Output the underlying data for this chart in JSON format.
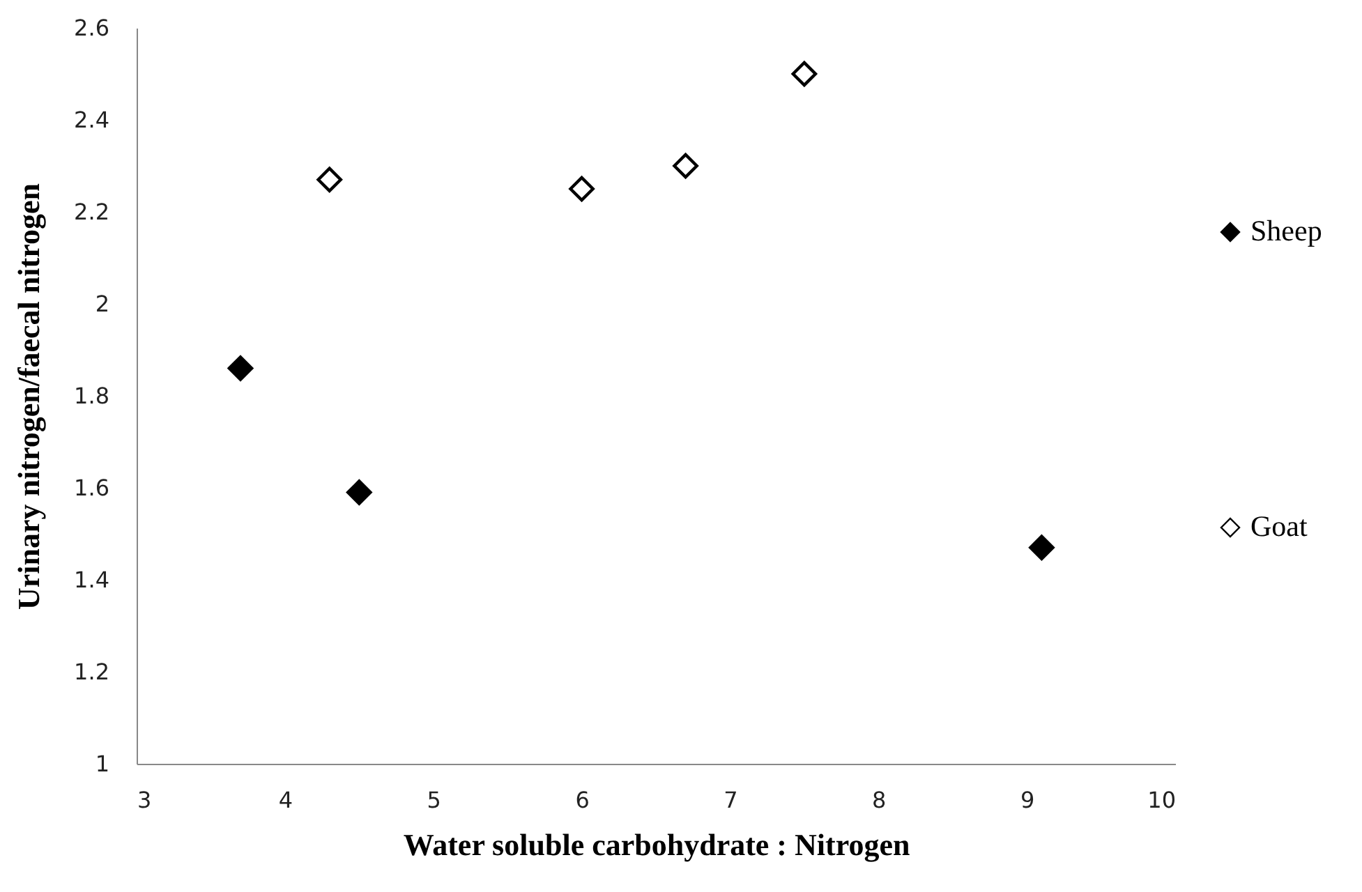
{
  "chart_data": {
    "type": "scatter",
    "xlabel": "Water soluble carbohydrate : Nitrogen",
    "ylabel": "Urinary nitrogen/faecal nitrogen",
    "series": [
      {
        "name": "Sheep",
        "color": "#000000",
        "x": [
          3.7,
          4.5,
          9.1
        ],
        "values": [
          1.86,
          1.59,
          1.47
        ]
      },
      {
        "name": "Goat",
        "color": "#ffffff",
        "x": [
          4.3,
          6.0,
          6.7,
          7.5
        ],
        "values": [
          2.27,
          2.25,
          2.3,
          2.5
        ]
      }
    ],
    "xlim": [
      3,
      10
    ],
    "xticks": [
      3,
      4,
      5,
      6,
      7,
      8,
      9,
      10
    ],
    "ylim": [
      1,
      2.6
    ],
    "yticks": [
      1,
      1.2,
      1.4,
      1.6,
      1.8,
      2,
      2.2,
      2.4,
      2.6
    ],
    "marker": "diamond",
    "legend": "right",
    "grid": false
  }
}
